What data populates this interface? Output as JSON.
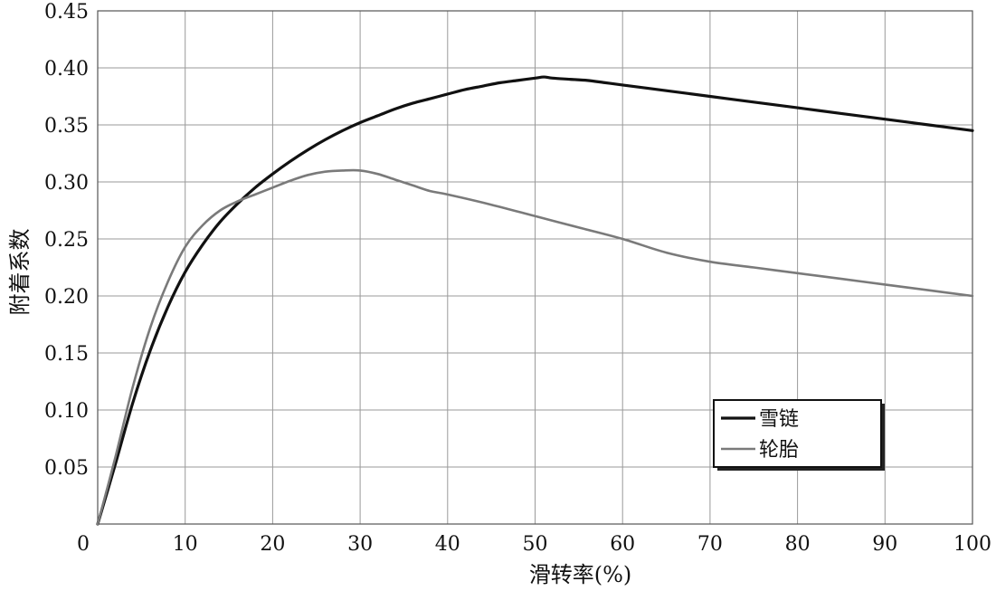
{
  "chart_data": {
    "type": "line",
    "xlabel": "滑转率(%)",
    "ylabel": "附着系数",
    "xlim": [
      0,
      100
    ],
    "ylim": [
      0,
      0.45
    ],
    "xticks": [
      "0",
      "10",
      "20",
      "30",
      "40",
      "50",
      "60",
      "70",
      "80",
      "90",
      "100"
    ],
    "yticks": [
      "0",
      "0.05",
      "0.10",
      "0.15",
      "0.20",
      "0.25",
      "0.30",
      "0.35",
      "0.40",
      "0.45"
    ],
    "grid": true,
    "legend_position": "lower-right",
    "series": [
      {
        "name": "雪链",
        "color": "#111111",
        "x": [
          0,
          2,
          4,
          6,
          8,
          10,
          12,
          14,
          16,
          18,
          20,
          22,
          24,
          26,
          28,
          30,
          32,
          34,
          36,
          38,
          40,
          42,
          44,
          46,
          48,
          50,
          51,
          52,
          54,
          56,
          58,
          60,
          65,
          70,
          75,
          80,
          85,
          90,
          95,
          100
        ],
        "y": [
          0,
          0.052,
          0.106,
          0.152,
          0.19,
          0.221,
          0.245,
          0.265,
          0.281,
          0.295,
          0.307,
          0.318,
          0.328,
          0.337,
          0.345,
          0.352,
          0.358,
          0.364,
          0.369,
          0.373,
          0.377,
          0.381,
          0.384,
          0.387,
          0.389,
          0.391,
          0.392,
          0.391,
          0.39,
          0.389,
          0.387,
          0.385,
          0.38,
          0.375,
          0.37,
          0.365,
          0.36,
          0.355,
          0.35,
          0.345
        ]
      },
      {
        "name": "轮胎",
        "color": "#7a7a7a",
        "x": [
          0,
          2,
          4,
          6,
          8,
          10,
          12,
          14,
          16,
          18,
          20,
          22,
          24,
          26,
          28,
          30,
          32,
          34,
          36,
          38,
          40,
          45,
          50,
          55,
          60,
          65,
          70,
          75,
          80,
          85,
          90,
          95,
          100
        ],
        "y": [
          0,
          0.058,
          0.12,
          0.172,
          0.212,
          0.243,
          0.262,
          0.275,
          0.283,
          0.289,
          0.295,
          0.301,
          0.306,
          0.309,
          0.31,
          0.31,
          0.307,
          0.302,
          0.297,
          0.292,
          0.289,
          0.28,
          0.27,
          0.26,
          0.25,
          0.238,
          0.23,
          0.225,
          0.22,
          0.215,
          0.21,
          0.205,
          0.2
        ]
      }
    ]
  }
}
